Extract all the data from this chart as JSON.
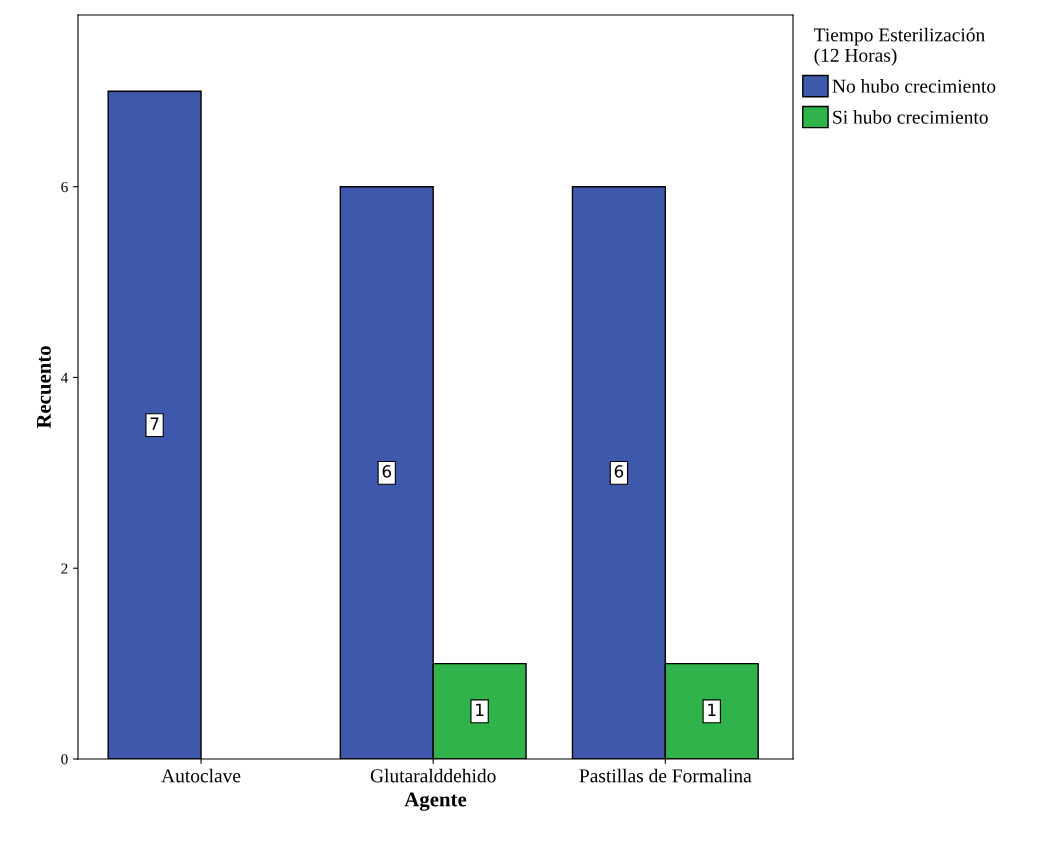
{
  "chart_data": {
    "type": "bar",
    "xlabel": "Agente",
    "ylabel": "Recuento",
    "legend_title": "Tiempo Esterilización\n(12 Horas)",
    "categories": [
      "Autoclave",
      "Glutaralddehido",
      "Pastillas de Formalina"
    ],
    "series": [
      {
        "name": "No hubo crecimiento",
        "color": "#3e58ac",
        "values": [
          7,
          6,
          6
        ]
      },
      {
        "name": "Si hubo crecimiento",
        "color": "#2fb34a",
        "values": [
          null,
          1,
          1
        ]
      }
    ],
    "ylim": [
      0,
      7.8
    ],
    "yticks": [
      0,
      2,
      4,
      6
    ],
    "data_labels": true,
    "legend": "top right",
    "grid": false
  }
}
